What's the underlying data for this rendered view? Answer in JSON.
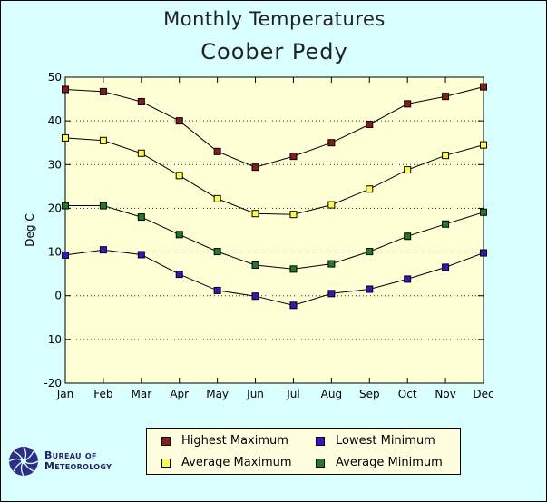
{
  "title": "Monthly Temperatures",
  "subtitle": "Coober Pedy",
  "logo": {
    "line1": "Bureau of",
    "line2": "Meteorology"
  },
  "colors": {
    "frame_bg": "#d9ffff",
    "plot_bg": "#ffffd5",
    "highest_max": "#8b1a1a",
    "average_max": "#ffff40",
    "average_min": "#1f7a2a",
    "lowest_min": "#3a12c8"
  },
  "chart_data": {
    "type": "line",
    "title": "Monthly Temperatures",
    "subtitle": "Coober Pedy",
    "xlabel": "",
    "ylabel": "Deg C",
    "categories": [
      "Jan",
      "Feb",
      "Mar",
      "Apr",
      "May",
      "Jun",
      "Jul",
      "Aug",
      "Sep",
      "Oct",
      "Nov",
      "Dec"
    ],
    "ylim": [
      -20,
      50
    ],
    "yticks": [
      -20,
      -10,
      0,
      10,
      20,
      30,
      40,
      50
    ],
    "grid": "horizontal dotted",
    "legend_position": "bottom",
    "series": [
      {
        "name": "Highest Maximum",
        "color": "#8b1a1a",
        "values": [
          47.2,
          46.7,
          44.4,
          40.0,
          33.0,
          29.4,
          31.9,
          35.0,
          39.2,
          43.9,
          45.6,
          47.8
        ]
      },
      {
        "name": "Average Maximum",
        "color": "#ffff40",
        "values": [
          36.1,
          35.5,
          32.6,
          27.5,
          22.2,
          18.8,
          18.6,
          20.8,
          24.4,
          28.8,
          32.1,
          34.5
        ]
      },
      {
        "name": "Average Minimum",
        "color": "#1f7a2a",
        "values": [
          20.6,
          20.6,
          18.0,
          14.0,
          10.1,
          7.0,
          6.1,
          7.3,
          10.1,
          13.6,
          16.4,
          19.1
        ]
      },
      {
        "name": "Lowest Minimum",
        "color": "#3a12c8",
        "values": [
          9.3,
          10.5,
          9.4,
          4.9,
          1.2,
          -0.1,
          -2.2,
          0.5,
          1.5,
          3.8,
          6.5,
          9.8
        ]
      }
    ]
  }
}
